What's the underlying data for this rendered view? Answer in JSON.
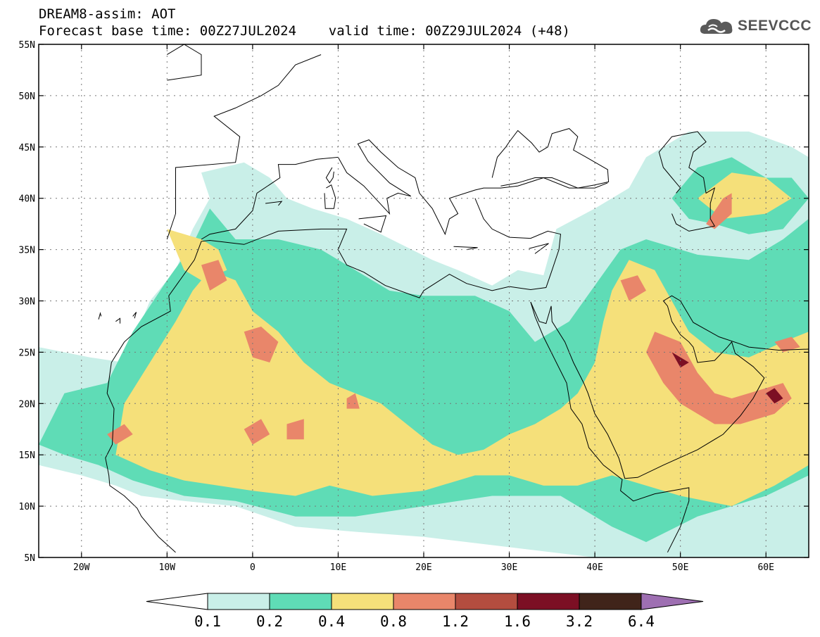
{
  "header": {
    "title_line1": "DREAM8-assim: AOT",
    "title_line2": "Forecast base time: 00Z27JUL2024    valid time: 00Z29JUL2024 (+48)"
  },
  "logo": {
    "text": "SEEVCCC",
    "icon": "cloud-icon",
    "color": "#5a5a5a"
  },
  "map": {
    "lon_range": [
      -25,
      65
    ],
    "lat_range": [
      5,
      55
    ],
    "lon_ticks": [
      {
        "value": -20,
        "label": "20W"
      },
      {
        "value": -10,
        "label": "10W"
      },
      {
        "value": 0,
        "label": "0"
      },
      {
        "value": 10,
        "label": "10E"
      },
      {
        "value": 20,
        "label": "20E"
      },
      {
        "value": 30,
        "label": "30E"
      },
      {
        "value": 40,
        "label": "40E"
      },
      {
        "value": 50,
        "label": "50E"
      },
      {
        "value": 60,
        "label": "60E"
      }
    ],
    "lat_ticks": [
      {
        "value": 5,
        "label": "5N"
      },
      {
        "value": 10,
        "label": "10N"
      },
      {
        "value": 15,
        "label": "15N"
      },
      {
        "value": 20,
        "label": "20N"
      },
      {
        "value": 25,
        "label": "25N"
      },
      {
        "value": 30,
        "label": "30N"
      },
      {
        "value": 35,
        "label": "35N"
      },
      {
        "value": 40,
        "label": "40N"
      },
      {
        "value": 45,
        "label": "45N"
      },
      {
        "value": 50,
        "label": "50N"
      },
      {
        "value": 55,
        "label": "55N"
      }
    ],
    "grid": true,
    "field_bands": [
      {
        "level": 0.1,
        "polygons": [
          [
            [
              -25,
              25.5
            ],
            [
              -19,
              24.5
            ],
            [
              -15,
              24
            ],
            [
              -12,
              30
            ],
            [
              -9,
              33
            ],
            [
              -7,
              37
            ],
            [
              -5,
              40
            ],
            [
              -6,
              42.5
            ],
            [
              -1,
              43.5
            ],
            [
              2,
              42
            ],
            [
              4,
              40
            ],
            [
              7,
              39
            ],
            [
              11,
              38
            ],
            [
              15,
              36.5
            ],
            [
              21,
              34
            ],
            [
              24,
              33
            ],
            [
              28,
              31.5
            ],
            [
              31,
              33
            ],
            [
              34,
              32.5
            ],
            [
              35.5,
              37
            ],
            [
              40,
              39
            ],
            [
              44,
              41
            ],
            [
              46,
              44
            ],
            [
              51,
              46.5
            ],
            [
              58,
              46.5
            ],
            [
              63,
              45
            ],
            [
              65,
              44
            ],
            [
              65,
              5
            ],
            [
              60,
              5
            ],
            [
              50,
              5
            ],
            [
              40,
              5
            ],
            [
              30,
              6
            ],
            [
              20,
              7
            ],
            [
              12,
              7.5
            ],
            [
              5,
              8
            ],
            [
              -2,
              10
            ],
            [
              -8,
              10.5
            ],
            [
              -13,
              11
            ],
            [
              -16,
              12
            ],
            [
              -20,
              13
            ],
            [
              -25,
              14
            ]
          ]
        ]
      },
      {
        "level": 0.2,
        "polygons": [
          [
            [
              -22,
              21
            ],
            [
              -17,
              22
            ],
            [
              -14,
              27
            ],
            [
              -10,
              32
            ],
            [
              -7,
              35.5
            ],
            [
              -5,
              39
            ],
            [
              -2,
              36
            ],
            [
              3,
              36
            ],
            [
              8,
              35
            ],
            [
              12,
              33
            ],
            [
              16,
              31
            ],
            [
              20,
              30.5
            ],
            [
              26,
              30.5
            ],
            [
              30,
              29
            ],
            [
              33,
              26
            ],
            [
              37,
              28
            ],
            [
              40,
              31.5
            ],
            [
              43,
              35
            ],
            [
              46,
              36
            ],
            [
              52,
              34.5
            ],
            [
              58,
              34
            ],
            [
              62,
              36
            ],
            [
              65,
              38
            ],
            [
              65,
              13
            ],
            [
              60,
              11
            ],
            [
              52,
              9
            ],
            [
              46,
              6.5
            ],
            [
              42,
              8
            ],
            [
              36,
              11
            ],
            [
              28,
              11
            ],
            [
              20,
              10
            ],
            [
              12,
              9
            ],
            [
              5,
              9
            ],
            [
              -2,
              10.5
            ],
            [
              -8,
              11
            ],
            [
              -14,
              12.5
            ],
            [
              -18,
              14
            ],
            [
              -22,
              15
            ],
            [
              -25,
              16
            ]
          ],
          [
            [
              49,
              40
            ],
            [
              52,
              43
            ],
            [
              56,
              44
            ],
            [
              60,
              42
            ],
            [
              63,
              42
            ],
            [
              65,
              40
            ],
            [
              62,
              37
            ],
            [
              58,
              36.5
            ],
            [
              54,
              37.5
            ],
            [
              51,
              38
            ]
          ]
        ]
      },
      {
        "level": 0.4,
        "polygons": [
          [
            [
              -16,
              15
            ],
            [
              -15,
              20
            ],
            [
              -12,
              24
            ],
            [
              -9,
              28
            ],
            [
              -7,
              31
            ],
            [
              -5,
              33
            ],
            [
              -2,
              32
            ],
            [
              0,
              29
            ],
            [
              3,
              27
            ],
            [
              6,
              24
            ],
            [
              9,
              22
            ],
            [
              12,
              21
            ],
            [
              15,
              20
            ],
            [
              18,
              18
            ],
            [
              21,
              16
            ],
            [
              24,
              15
            ],
            [
              27,
              15.5
            ],
            [
              30,
              17
            ],
            [
              33,
              18
            ],
            [
              36,
              19.5
            ],
            [
              38,
              21
            ],
            [
              40,
              24
            ],
            [
              41,
              28
            ],
            [
              42,
              31
            ],
            [
              44,
              34
            ],
            [
              47,
              33
            ],
            [
              49,
              30
            ],
            [
              51,
              27
            ],
            [
              54,
              25
            ],
            [
              58,
              24.5
            ],
            [
              62,
              26
            ],
            [
              65,
              27
            ],
            [
              65,
              14
            ],
            [
              61,
              12
            ],
            [
              56,
              10
            ],
            [
              50,
              11
            ],
            [
              46,
              12
            ],
            [
              42,
              13
            ],
            [
              38,
              12
            ],
            [
              34,
              12
            ],
            [
              30,
              13
            ],
            [
              26,
              13
            ],
            [
              20,
              11.5
            ],
            [
              14,
              11
            ],
            [
              9,
              12
            ],
            [
              5,
              11
            ],
            [
              0,
              11.5
            ],
            [
              -4,
              12
            ],
            [
              -8,
              12.5
            ],
            [
              -12,
              13.5
            ]
          ],
          [
            [
              -10,
              37
            ],
            [
              -6,
              36
            ],
            [
              -4,
              35
            ],
            [
              -3,
              33
            ],
            [
              -6,
              32
            ],
            [
              -8,
              33
            ]
          ],
          [
            [
              52,
              40
            ],
            [
              56,
              42.5
            ],
            [
              60,
              42
            ],
            [
              63,
              40
            ],
            [
              60,
              38.5
            ],
            [
              55,
              38
            ]
          ]
        ]
      },
      {
        "level": 0.8,
        "polygons": [
          [
            [
              -17,
              17
            ],
            [
              -15,
              18
            ],
            [
              -14,
              17
            ],
            [
              -16,
              16
            ]
          ],
          [
            [
              -6,
              33.5
            ],
            [
              -4,
              34
            ],
            [
              -3,
              32
            ],
            [
              -5,
              31
            ]
          ],
          [
            [
              -1,
              27
            ],
            [
              1,
              27.5
            ],
            [
              3,
              26
            ],
            [
              2,
              24
            ],
            [
              0,
              24.5
            ]
          ],
          [
            [
              -1,
              17.5
            ],
            [
              1,
              18.5
            ],
            [
              2,
              17
            ],
            [
              0,
              16
            ]
          ],
          [
            [
              4,
              18
            ],
            [
              6,
              18.5
            ],
            [
              6,
              16.5
            ],
            [
              4,
              16.5
            ]
          ],
          [
            [
              11,
              20.5
            ],
            [
              12,
              21
            ],
            [
              12.5,
              19.5
            ],
            [
              11,
              19.5
            ]
          ],
          [
            [
              43,
              32
            ],
            [
              45,
              32.5
            ],
            [
              46,
              31
            ],
            [
              44,
              30
            ]
          ],
          [
            [
              47,
              27
            ],
            [
              50,
              26
            ],
            [
              52,
              23
            ],
            [
              54,
              21
            ],
            [
              56,
              20.5
            ],
            [
              58,
              21
            ],
            [
              62,
              22
            ],
            [
              63,
              20.5
            ],
            [
              61,
              19
            ],
            [
              57,
              18
            ],
            [
              54,
              18
            ],
            [
              50,
              20
            ],
            [
              48,
              22
            ],
            [
              46,
              25
            ]
          ],
          [
            [
              53,
              37.5
            ],
            [
              55,
              40
            ],
            [
              56,
              40.5
            ],
            [
              56,
              38.5
            ],
            [
              54,
              37
            ]
          ],
          [
            [
              61,
              26
            ],
            [
              63,
              26.5
            ],
            [
              64,
              25.5
            ],
            [
              62,
              25
            ]
          ]
        ]
      },
      {
        "level": 1.6,
        "polygons": [
          [
            [
              60,
              21
            ],
            [
              61,
              21.5
            ],
            [
              62,
              20.5
            ],
            [
              61,
              20
            ]
          ],
          [
            [
              49,
              25
            ],
            [
              50,
              24.5
            ],
            [
              51,
              24
            ],
            [
              50,
              23.5
            ]
          ]
        ]
      }
    ],
    "colorbar": {
      "colors": [
        "#ffffff",
        "#c9efe8",
        "#5fdcb6",
        "#f5e07a",
        "#e9866a",
        "#b44d3f",
        "#7c0f24",
        "#40241a",
        "#9e6fb2"
      ],
      "labels": [
        "0.1",
        "0.2",
        "0.4",
        "0.8",
        "1.2",
        "1.6",
        "3.2",
        "6.4"
      ]
    }
  }
}
